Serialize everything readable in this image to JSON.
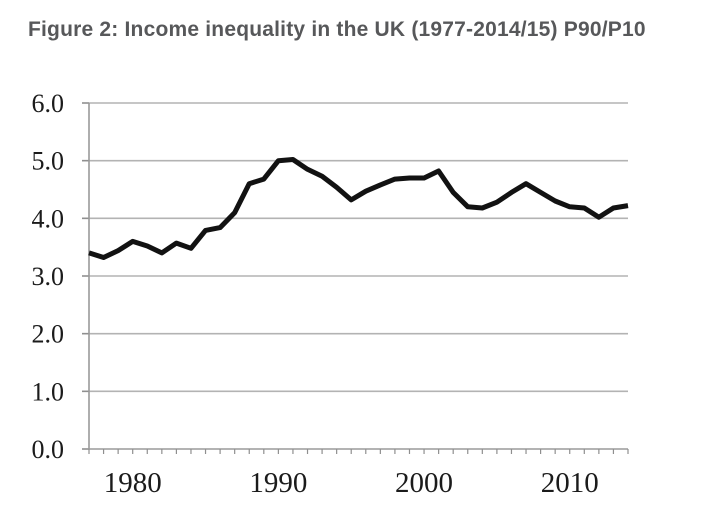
{
  "figure": {
    "title": "Figure 2: Income inequality in the UK (1977-2014/15) P90/P10"
  },
  "chart_data": {
    "type": "line",
    "title": "Figure 2: Income inequality in the UK (1977-2014/15) P90/P10",
    "xlabel": "",
    "ylabel": "",
    "x": [
      1977,
      1978,
      1979,
      1980,
      1981,
      1982,
      1983,
      1984,
      1985,
      1986,
      1987,
      1988,
      1989,
      1990,
      1991,
      1992,
      1993,
      1994,
      1995,
      1996,
      1997,
      1998,
      1999,
      2000,
      2001,
      2002,
      2003,
      2004,
      2005,
      2006,
      2007,
      2008,
      2009,
      2010,
      2011,
      2012,
      2013,
      2014
    ],
    "series": [
      {
        "name": "P90/P10 ratio",
        "values": [
          3.4,
          3.32,
          3.44,
          3.6,
          3.52,
          3.4,
          3.57,
          3.48,
          3.79,
          3.84,
          4.1,
          4.6,
          4.68,
          5.0,
          5.02,
          4.85,
          4.73,
          4.54,
          4.32,
          4.47,
          4.58,
          4.68,
          4.7,
          4.7,
          4.82,
          4.45,
          4.2,
          4.18,
          4.28,
          4.45,
          4.6,
          4.45,
          4.3,
          4.2,
          4.18,
          4.02,
          4.18,
          4.22
        ]
      }
    ],
    "ylim": [
      0,
      6
    ],
    "ytick_step": 1,
    "ytick_labels": [
      "0.0",
      "1.0",
      "2.0",
      "3.0",
      "4.0",
      "5.0",
      "6.0"
    ],
    "xticks": [
      {
        "label": "1980",
        "year": 1980
      },
      {
        "label": "1990",
        "year": 1990
      },
      {
        "label": "2000",
        "year": 2000
      },
      {
        "label": "2010",
        "year": 2010
      }
    ],
    "grid": "horizontal",
    "legend": "none",
    "colors": {
      "line": "#121212",
      "grid": "#b3b3b3",
      "axis": "#9a9a9a",
      "tick": "#8f8f8f",
      "label": "#1b1b1b",
      "title": "#57585a"
    }
  }
}
